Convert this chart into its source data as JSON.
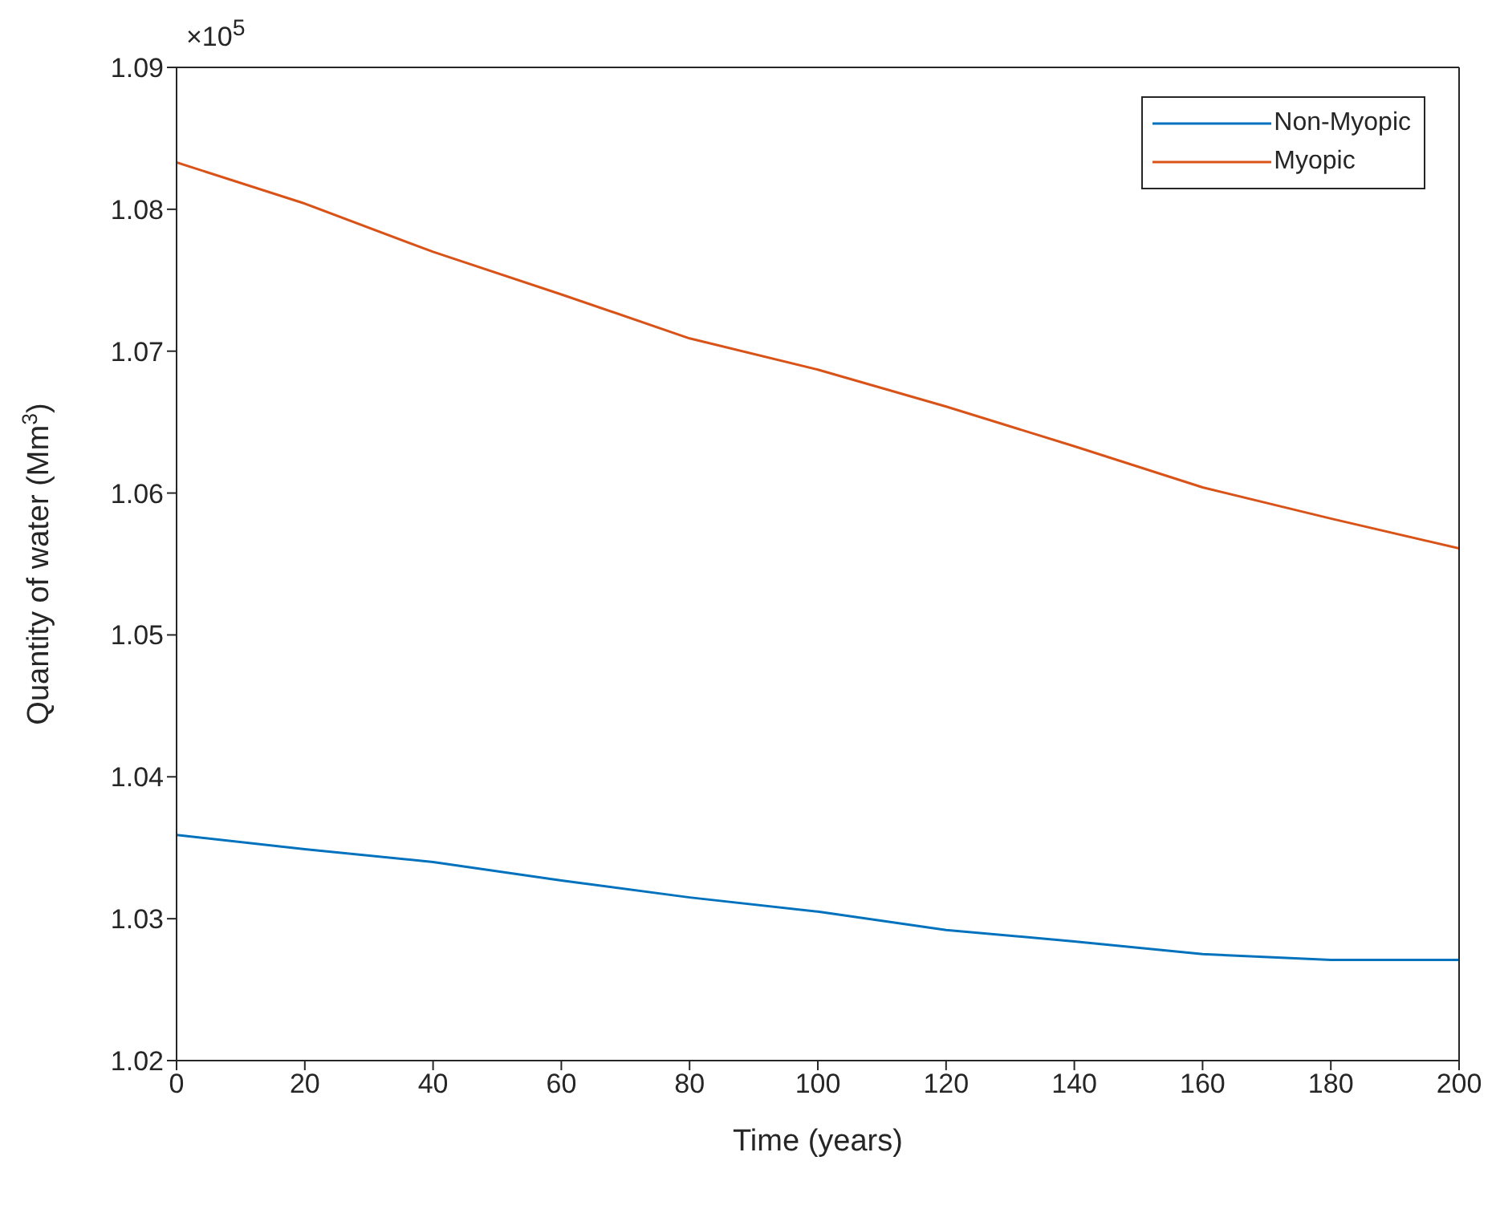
{
  "chart_data": {
    "type": "line",
    "xlabel": "Time (years)",
    "ylabel": "Quantity of water (Mm$^{3}$)",
    "annotations": [
      "×10$^{5}$"
    ],
    "x": [
      0,
      20,
      40,
      60,
      80,
      100,
      120,
      140,
      160,
      180,
      190,
      200
    ],
    "series": [
      {
        "name": "Non-Myopic",
        "color": "#0072bd",
        "values": [
          1.0359,
          1.0349,
          1.034,
          1.0327,
          1.0315,
          1.0305,
          1.0292,
          1.0284,
          1.0275,
          1.0271,
          1.0271,
          1.0271
        ]
      },
      {
        "name": "Myopic",
        "color": "#d95319",
        "x": [
          0,
          20,
          40,
          60,
          80,
          100,
          120,
          140,
          160,
          180,
          200
        ],
        "values": [
          1.0833,
          1.0804,
          1.077,
          1.074,
          1.0709,
          1.0687,
          1.0661,
          1.0633,
          1.0604,
          1.0582,
          1.0561
        ]
      }
    ],
    "xlim": [
      0,
      200
    ],
    "xticks": [
      0,
      20,
      40,
      60,
      80,
      100,
      120,
      140,
      160,
      180,
      200
    ],
    "ylim": [
      1.02,
      1.09
    ],
    "yticks": [
      1.02,
      1.03,
      1.04,
      1.05,
      1.06,
      1.07,
      1.08,
      1.09
    ],
    "legend": "top right",
    "marker": "none",
    "line_style": "solid"
  }
}
